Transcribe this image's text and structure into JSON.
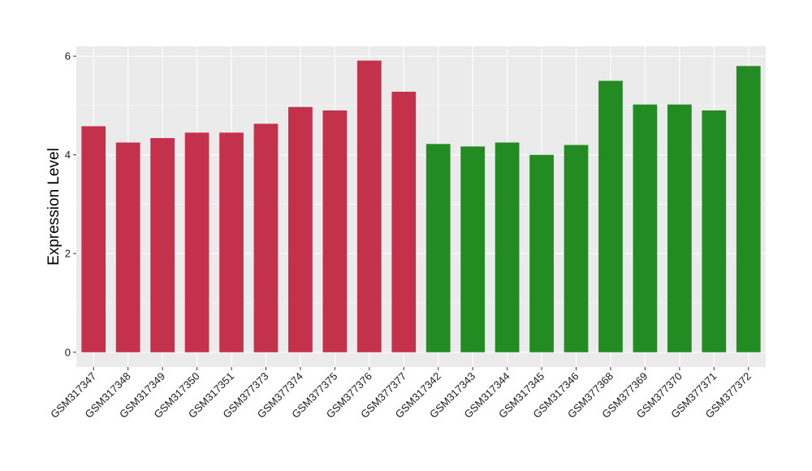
{
  "chart_data": {
    "type": "bar",
    "title": "",
    "xlabel": "",
    "ylabel": "Expression Level",
    "ylim": [
      -0.3,
      6.2
    ],
    "yticks": [
      0,
      2,
      4,
      6
    ],
    "grid": true,
    "categories": [
      "GSM317347",
      "GSM317348",
      "GSM317349",
      "GSM317350",
      "GSM317351",
      "GSM377373",
      "GSM377374",
      "GSM377375",
      "GSM377376",
      "GSM377377",
      "GSM317342",
      "GSM317343",
      "GSM317344",
      "GSM317345",
      "GSM317346",
      "GSM377368",
      "GSM377369",
      "GSM377370",
      "GSM377371",
      "GSM377372"
    ],
    "values": [
      4.58,
      4.25,
      4.34,
      4.45,
      4.45,
      4.63,
      4.97,
      4.9,
      5.91,
      5.28,
      4.22,
      4.17,
      4.25,
      4.0,
      4.2,
      5.5,
      5.02,
      5.02,
      4.9,
      5.8
    ],
    "groups": [
      "red",
      "red",
      "red",
      "red",
      "red",
      "red",
      "red",
      "red",
      "red",
      "red",
      "green",
      "green",
      "green",
      "green",
      "green",
      "green",
      "green",
      "green",
      "green",
      "green"
    ],
    "colors": {
      "red": "#c4314b",
      "green": "#228b22",
      "panel": "#ebebeb",
      "grid": "#ffffff"
    }
  }
}
